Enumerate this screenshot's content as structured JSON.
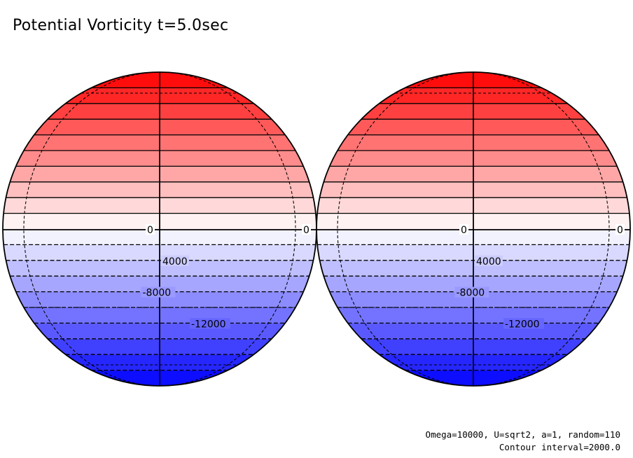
{
  "title": "Potential Vorticity t=5.0sec",
  "footer": {
    "params": "Omega=10000, U=sqrt2, a=1, random=110",
    "interval": "Contour interval=2000.0"
  },
  "colors": {
    "positive_max": "#ff0000",
    "neutral": "#ffffff",
    "negative_max": "#0000ff"
  },
  "chart_data": {
    "type": "filled-contour",
    "projection": "orthographic",
    "panels": [
      {
        "name": "left hemisphere"
      },
      {
        "name": "right hemisphere"
      }
    ],
    "field": "potential vorticity",
    "time": "t=5.0sec",
    "contour_interval": 2000,
    "value_range": [
      -20000,
      20000
    ],
    "levels": [
      -20000,
      -18000,
      -16000,
      -14000,
      -12000,
      -10000,
      -8000,
      -6000,
      -4000,
      -2000,
      0,
      2000,
      4000,
      6000,
      8000,
      10000,
      12000,
      14000,
      16000,
      18000,
      20000
    ],
    "contour_labels": [
      "0",
      "0",
      "4000",
      "-8000",
      "-12000"
    ],
    "graticule_lon_offsets_deg": [
      -60,
      0,
      60
    ],
    "graticule_lat_deg": [
      -60,
      -30,
      0,
      30,
      60
    ]
  }
}
